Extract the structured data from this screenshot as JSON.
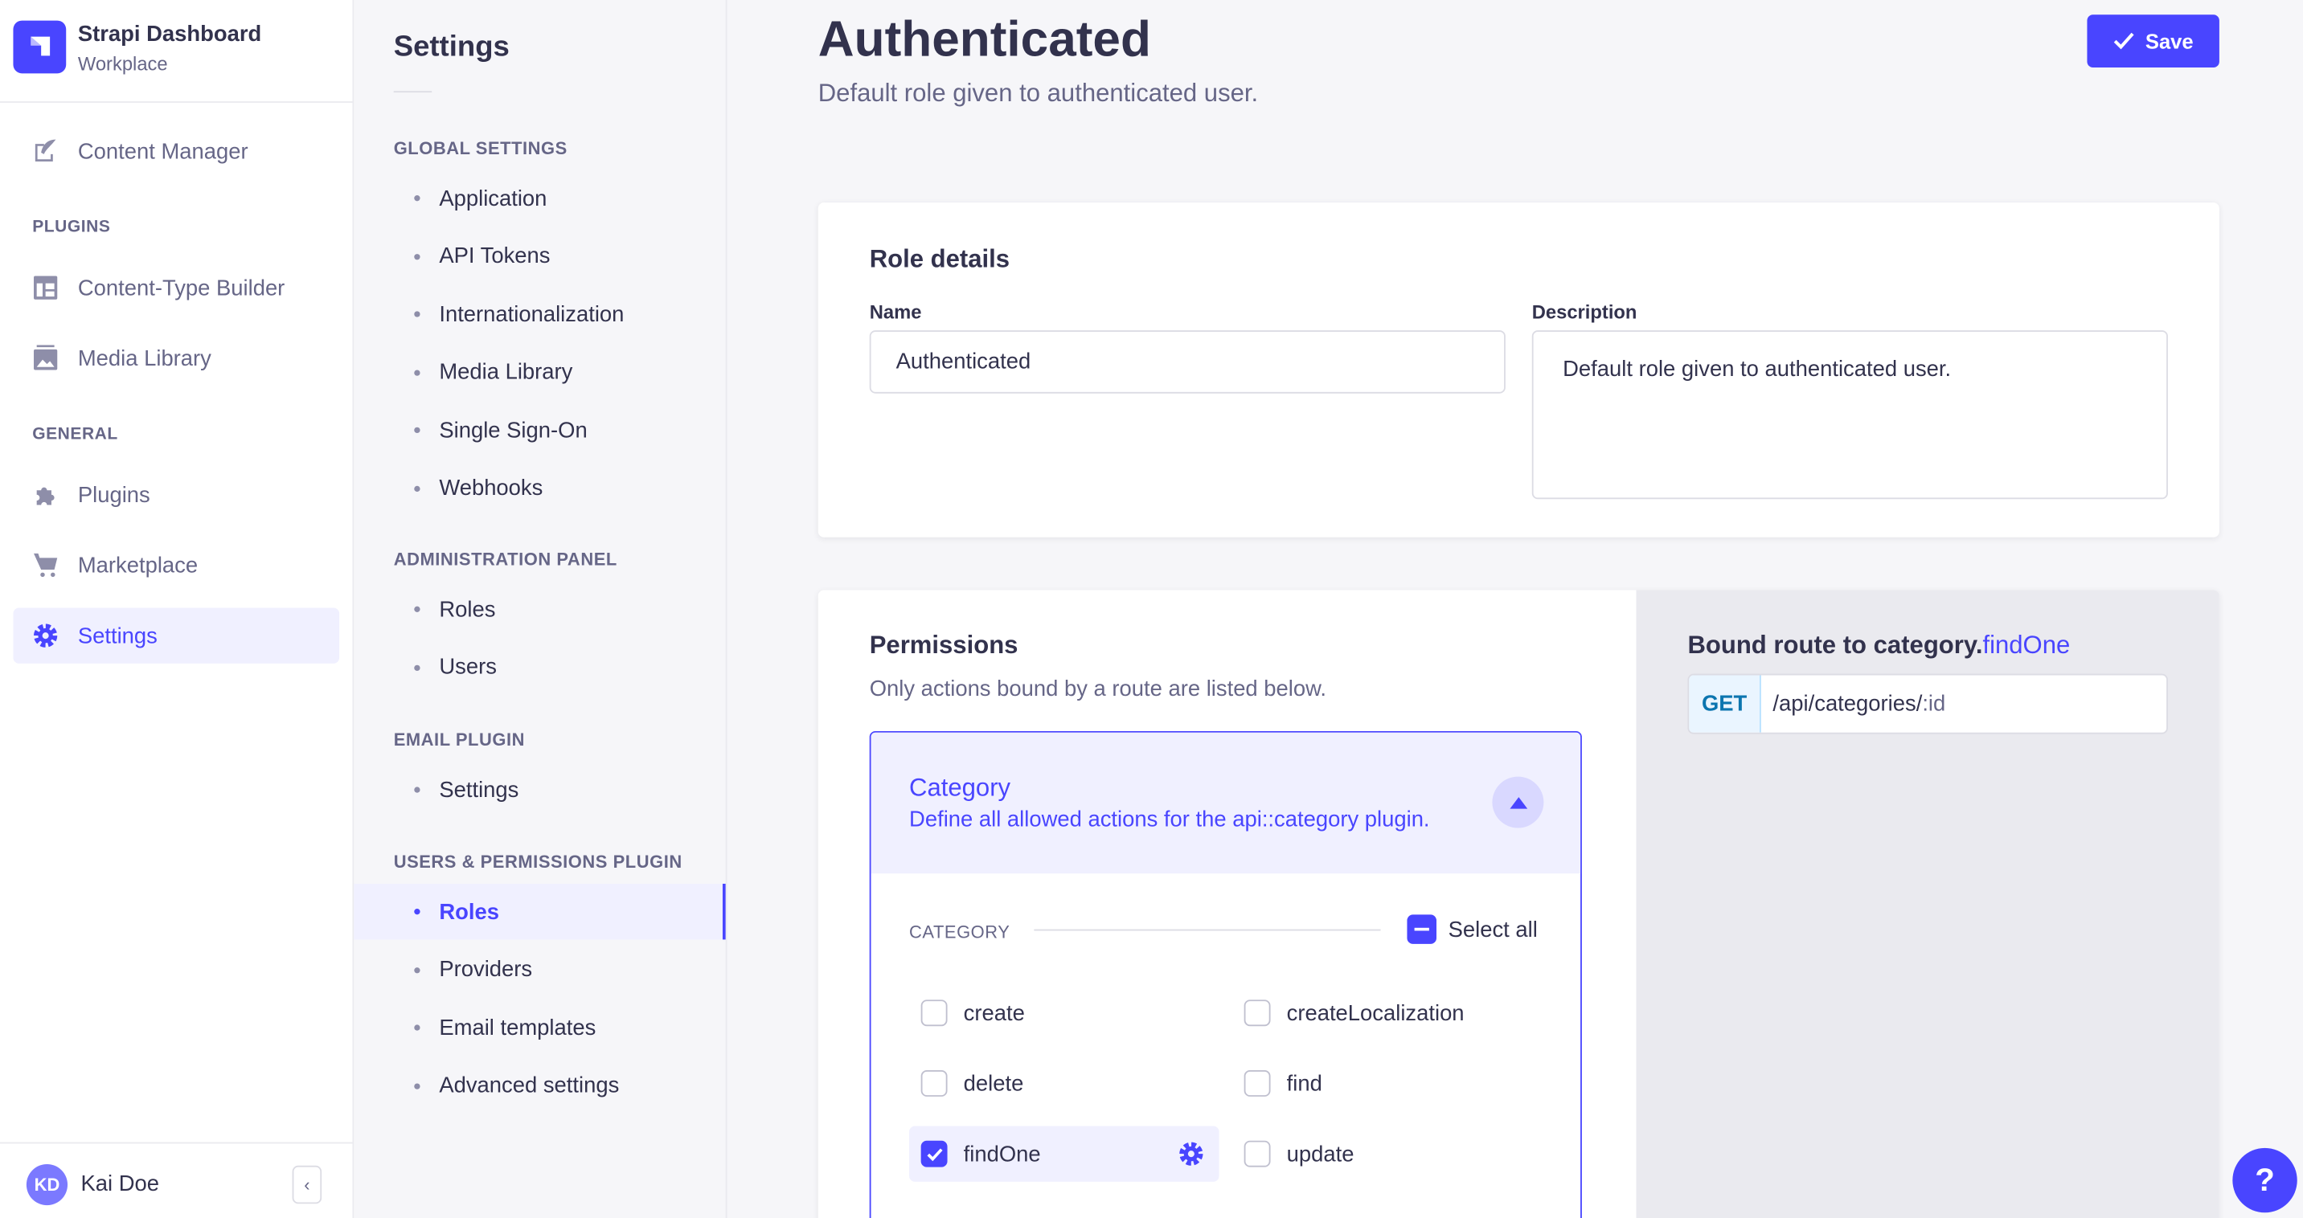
{
  "brand": {
    "title": "Strapi Dashboard",
    "subtitle": "Workplace"
  },
  "nav": {
    "content_manager": "Content Manager",
    "plugins_section": "PLUGINS",
    "ctb": "Content-Type Builder",
    "media": "Media Library",
    "general_section": "GENERAL",
    "plugins": "Plugins",
    "marketplace": "Marketplace",
    "settings": "Settings"
  },
  "user": {
    "initials": "KD",
    "name": "Kai Doe"
  },
  "settings_nav": {
    "title": "Settings",
    "sections": [
      {
        "label": "GLOBAL SETTINGS",
        "items": [
          "Application",
          "API Tokens",
          "Internationalization",
          "Media Library",
          "Single Sign-On",
          "Webhooks"
        ]
      },
      {
        "label": "ADMINISTRATION PANEL",
        "items": [
          "Roles",
          "Users"
        ]
      },
      {
        "label": "EMAIL PLUGIN",
        "items": [
          "Settings"
        ]
      },
      {
        "label": "USERS & PERMISSIONS PLUGIN",
        "items": [
          "Roles",
          "Providers",
          "Email templates",
          "Advanced settings"
        ]
      }
    ],
    "active": "Roles"
  },
  "header": {
    "title": "Authenticated",
    "subtitle": "Default role given to authenticated user.",
    "save": "Save"
  },
  "role_details": {
    "title": "Role details",
    "name_label": "Name",
    "name_value": "Authenticated",
    "desc_label": "Description",
    "desc_value": "Default role given to authenticated user."
  },
  "permissions": {
    "title": "Permissions",
    "subtitle": "Only actions bound by a route are listed below.",
    "accordion": {
      "title": "Category",
      "description": "Define all allowed actions for the api::category plugin.",
      "section": "CATEGORY",
      "select_all": "Select all",
      "actions": [
        {
          "label": "create",
          "checked": false
        },
        {
          "label": "createLocalization",
          "checked": false
        },
        {
          "label": "delete",
          "checked": false
        },
        {
          "label": "find",
          "checked": false
        },
        {
          "label": "findOne",
          "checked": true
        },
        {
          "label": "update",
          "checked": false
        }
      ]
    }
  },
  "route": {
    "title_prefix": "Bound route to category.",
    "title_action": "findOne",
    "method": "GET",
    "path_main": "/api/categories/",
    "path_param": ":id"
  },
  "colors": {
    "primary": "#4945ff",
    "get_method": "#0c75af"
  }
}
